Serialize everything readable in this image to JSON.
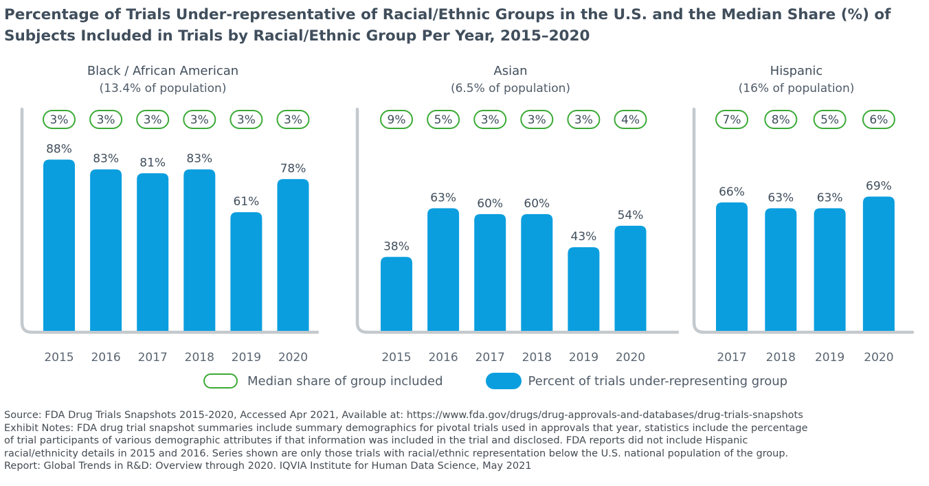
{
  "title": {
    "line1": "Percentage of Trials Under-representative of Racial/Ethnic Groups in the U.S. and the Median Share (%) of",
    "line2": "Subjects Included in Trials by Racial/Ethnic Group Per Year, 2015–2020"
  },
  "colors": {
    "bar": "#0a9edf",
    "pill_outline": "#3aaa35",
    "axis": "#c4c9ce",
    "text": "#404e5c"
  },
  "chart_data": [
    {
      "type": "bar",
      "title": "Black / African American",
      "subtitle": "(13.4% of population)",
      "categories": [
        "2015",
        "2016",
        "2017",
        "2018",
        "2019",
        "2020"
      ],
      "series": [
        {
          "name": "Percent of trials under-representing group",
          "values": [
            88,
            83,
            81,
            83,
            61,
            78
          ]
        },
        {
          "name": "Median share of group included",
          "values": [
            3,
            3,
            3,
            3,
            3,
            3
          ]
        }
      ],
      "ylim": [
        0,
        100
      ],
      "grid": false
    },
    {
      "type": "bar",
      "title": "Asian",
      "subtitle": "(6.5% of population)",
      "categories": [
        "2015",
        "2016",
        "2017",
        "2018",
        "2019",
        "2020"
      ],
      "series": [
        {
          "name": "Percent of trials under-representing group",
          "values": [
            38,
            63,
            60,
            60,
            43,
            54
          ]
        },
        {
          "name": "Median share of group included",
          "values": [
            9,
            5,
            3,
            3,
            3,
            4
          ]
        }
      ],
      "ylim": [
        0,
        100
      ],
      "grid": false
    },
    {
      "type": "bar",
      "title": "Hispanic",
      "subtitle": "(16% of population)",
      "categories": [
        "2017",
        "2018",
        "2019",
        "2020"
      ],
      "series": [
        {
          "name": "Percent of trials under-representing group",
          "values": [
            66,
            63,
            63,
            69
          ]
        },
        {
          "name": "Median share of group included",
          "values": [
            7,
            8,
            5,
            6
          ]
        }
      ],
      "ylim": [
        0,
        100
      ],
      "grid": false
    }
  ],
  "legend": {
    "median_label": "Median share of group included",
    "percent_label": "Percent of trials under-representing group"
  },
  "notes": [
    "Source: FDA Drug Trials Snapshots 2015-2020, Accessed Apr 2021, Available at: https://www.fda.gov/drugs/drug-approvals-and-databases/drug-trials-snapshots",
    "Exhibit Notes: FDA drug trial snapshot summaries include summary demographics for pivotal trials used in approvals that year, statistics include the percentage",
    "of trial participants of various demographic attributes if that information was included in the trial and disclosed. FDA reports did not include Hispanic",
    "racial/ethnicity details in 2015 and 2016. Series shown are only those trials with racial/ethnic representation below the U.S. national population of the group.",
    "Report: Global Trends in R&D: Overview through 2020. IQVIA Institute for Human Data Science, May 2021"
  ]
}
